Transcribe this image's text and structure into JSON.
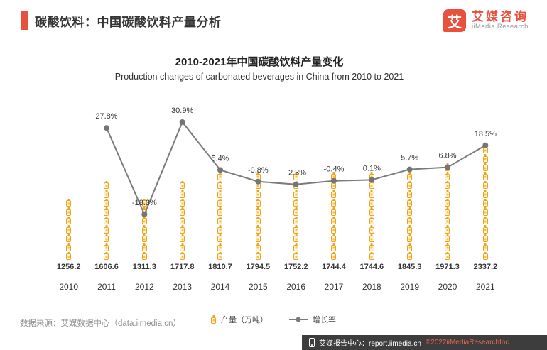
{
  "header": {
    "title": "碳酸饮料：中国碳酸饮料产量分析"
  },
  "logo": {
    "mark": "艾",
    "name_cn": "艾媒咨询",
    "name_en": "iiMedia Research"
  },
  "colors": {
    "accent_red": "#E8513D",
    "bar_gold": "#EFA21C",
    "line_gray": "#7B7B7B",
    "footer_bg": "#3D3D3D"
  },
  "chart_data": {
    "type": "bar",
    "title": "2010-2021年中国碳酸饮料产量变化",
    "subtitle": "Production changes of carbonated beverages in China from 2010 to 2021",
    "categories": [
      "2010",
      "2011",
      "2012",
      "2013",
      "2014",
      "2015",
      "2016",
      "2017",
      "2018",
      "2019",
      "2020",
      "2021"
    ],
    "series": [
      {
        "name": "产量（万吨）",
        "type": "bar",
        "unit": "万吨",
        "values": [
          1256.2,
          1606.6,
          1311.3,
          1717.8,
          1810.7,
          1794.5,
          1752.2,
          1744.4,
          1744.6,
          1845.3,
          1971.3,
          2337.2
        ]
      },
      {
        "name": "增长率",
        "type": "line",
        "unit": "%",
        "values": [
          null,
          27.8,
          -18.3,
          30.9,
          5.4,
          -0.8,
          -2.3,
          -0.4,
          0.1,
          5.7,
          6.8,
          18.5
        ]
      }
    ],
    "legend_position": "bottom",
    "grid": false,
    "ylim_bar": [
      0,
      2500
    ],
    "ylim_growth": [
      -25,
      35
    ]
  },
  "source": "数据来源：艾媒数据中心（data.iimedia.cn）",
  "footer": {
    "report": "艾媒报告中心：report.iimedia.cn",
    "copyright": "©2022iiMediaResearchInc"
  }
}
